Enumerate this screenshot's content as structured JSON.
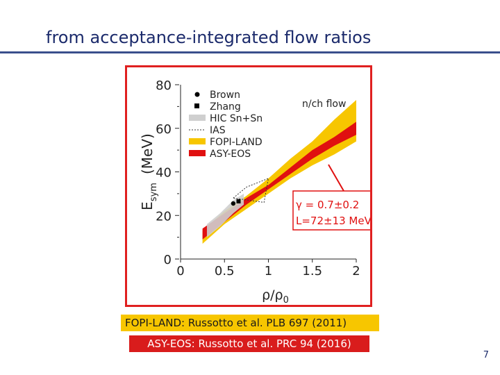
{
  "slide": {
    "title": "from acceptance-integrated flow ratios",
    "page_number": "7"
  },
  "references": {
    "fopi": "FOPI-LAND: Russotto et al. PLB 697 (2011)",
    "asy": "ASY-EOS: Russotto et al. PRC 94 (2016)"
  },
  "chart_data": {
    "type": "area",
    "xlabel": "ρ/ρ",
    "xlabel_sub": "0",
    "ylabel": "E",
    "ylabel_sub": "sym",
    "ylabel_unit": "(MeV)",
    "xlim": [
      0,
      2
    ],
    "ylim": [
      0,
      80
    ],
    "xticks": [
      "0",
      "0.5",
      "1",
      "1.5",
      "2"
    ],
    "yticks": [
      "0",
      "20",
      "40",
      "60",
      "80"
    ],
    "legend_position": "top-left",
    "legend": [
      {
        "label": "Brown",
        "marker": "circle",
        "color": "#000000"
      },
      {
        "label": "Zhang",
        "marker": "square",
        "color": "#000000"
      },
      {
        "label": "HIC Sn+Sn",
        "marker": "band",
        "color": "#cfcfcf"
      },
      {
        "label": "IAS",
        "marker": "dotted-box",
        "color": "#333333"
      },
      {
        "label": "FOPI-LAND",
        "marker": "band",
        "color": "#f7c600"
      },
      {
        "label": "ASY-EOS",
        "marker": "band",
        "color": "#e01010"
      }
    ],
    "annotation": "n/ch flow",
    "gamma_text": "γ = 0.7±0.2",
    "slope_text": "L=72±13 MeV",
    "series": [
      {
        "name": "FOPI-LAND",
        "color": "#f7c600",
        "x": [
          0.25,
          0.5,
          0.75,
          1.0,
          1.25,
          1.5,
          1.75,
          2.0
        ],
        "lower": [
          7,
          16,
          23,
          30,
          37,
          43,
          48,
          54
        ],
        "upper": [
          13,
          22,
          29,
          37,
          46,
          54,
          64,
          73
        ]
      },
      {
        "name": "ASY-EOS",
        "color": "#e01010",
        "x": [
          0.25,
          0.5,
          0.75,
          1.0,
          1.25,
          1.5,
          1.75,
          2.0
        ],
        "lower": [
          9,
          17,
          25,
          32,
          39,
          46,
          52,
          57
        ],
        "upper": [
          14,
          21,
          28,
          34,
          42,
          50,
          56,
          63
        ]
      },
      {
        "name": "HIC Sn+Sn",
        "color": "#cfcfcf",
        "x": [
          0.3,
          0.45,
          0.6,
          0.72
        ],
        "lower": [
          10,
          15,
          21,
          25
        ],
        "upper": [
          16,
          21,
          27,
          30
        ]
      }
    ],
    "ias": {
      "x": [
        0.6,
        0.75,
        1.0,
        0.95
      ],
      "y": [
        28,
        33,
        37,
        26
      ]
    },
    "points": [
      {
        "name": "Brown",
        "marker": "circle",
        "x": 0.6,
        "y": 25.5
      },
      {
        "name": "Zhang",
        "marker": "square",
        "x": 0.66,
        "y": 26.5
      }
    ]
  }
}
